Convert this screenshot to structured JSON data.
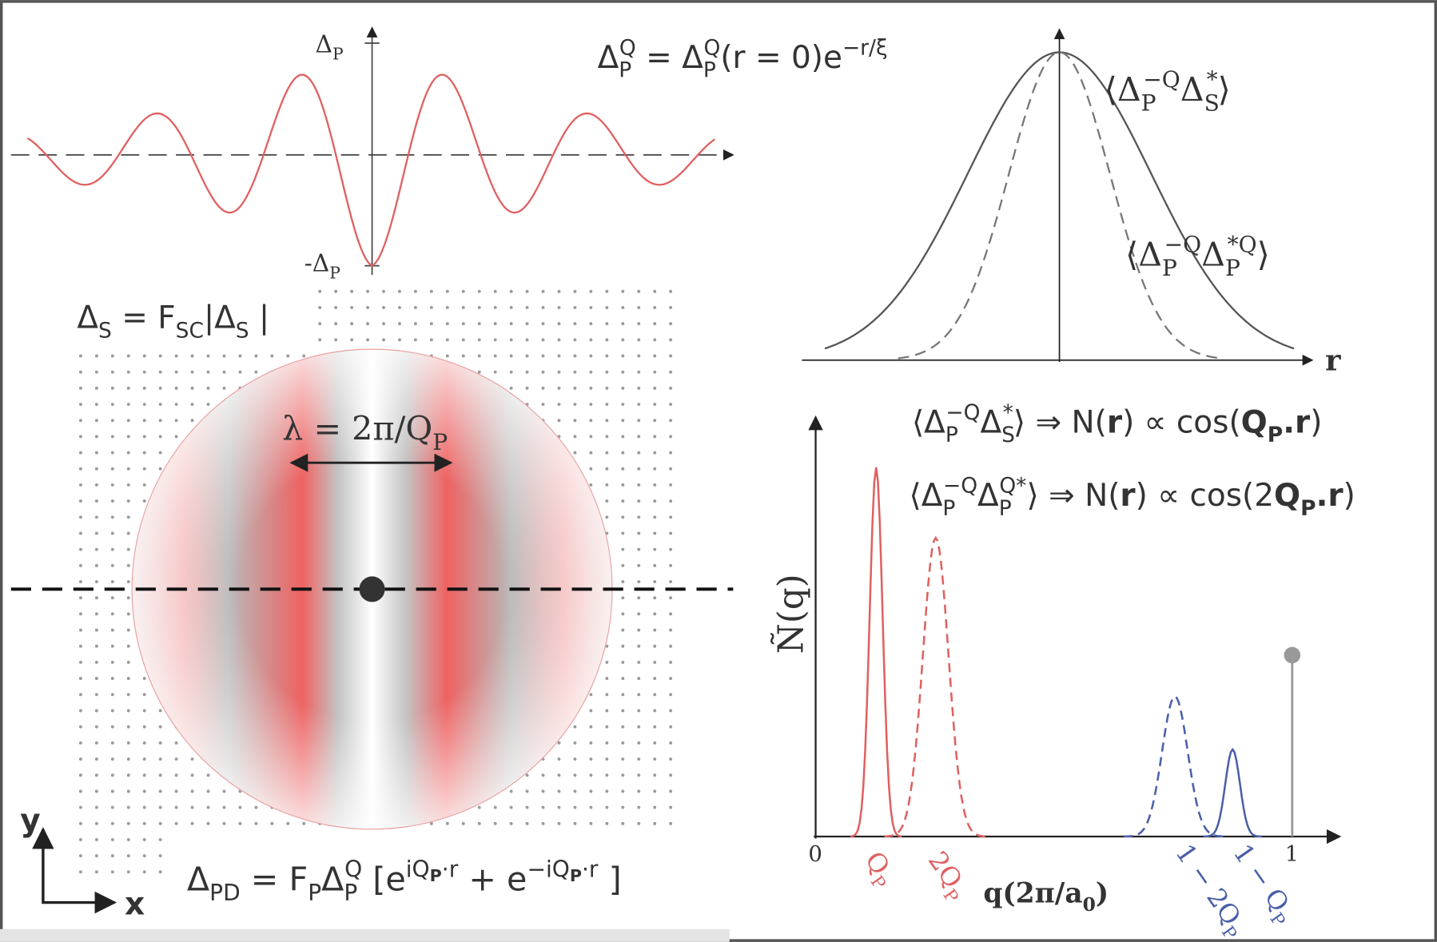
{
  "wave_plot": {
    "y_max_label": [
      "Δ",
      "P"
    ],
    "y_min_label": [
      "-Δ",
      "P"
    ]
  },
  "decay_equation": [
    "Δ",
    "P",
    "Q",
    " = Δ",
    "P",
    "Q",
    "(r = 0)e",
    "−r/ξ"
  ],
  "correlation_plot": {
    "curves": [
      [
        "⟨Δ",
        "P",
        "−Q",
        "Δ",
        "S",
        "*",
        "⟩"
      ],
      [
        "⟨Δ",
        "P",
        "−Q",
        "Δ",
        "P",
        "*Q",
        "⟩"
      ]
    ],
    "x_label": "r"
  },
  "s_wave_equation": [
    "Δ",
    "S",
    " = F",
    "SC",
    "|Δ",
    "S",
    " |"
  ],
  "wavelength_label": [
    "λ = 2π/Q",
    "P"
  ],
  "axes": {
    "y": "y",
    "x": "x"
  },
  "pd_equation": [
    "Δ",
    "PD",
    " = F",
    "P",
    "Δ",
    "P",
    "Q",
    " [e",
    "iQ",
    "P",
    "·r",
    " + e",
    "−iQ",
    "P",
    "·r",
    " ]"
  ],
  "spectrum": {
    "relations": [
      [
        "⟨Δ",
        "P",
        "−Q",
        "Δ",
        "S",
        "*",
        "⟩  ⇒  N(",
        "r",
        ") ∝ cos(",
        "Q",
        "P",
        ".",
        "r",
        ")"
      ],
      [
        "⟨Δ",
        "P",
        "−Q",
        "Δ",
        "P",
        "Q*",
        "⟩ ⇒ N(",
        "r",
        ") ∝ cos(2",
        "Q",
        "P",
        ".",
        "r",
        ")"
      ]
    ],
    "y_label": "Ñ(q)",
    "x_label": [
      "q(2π/a",
      "0",
      ")"
    ],
    "ticks": [
      "0",
      "1"
    ],
    "peak_labels": [
      [
        "Q",
        "P"
      ],
      [
        "2Q",
        "P"
      ],
      [
        "1 − 2Q",
        "P"
      ],
      [
        "1 − Q",
        "P"
      ]
    ]
  }
}
